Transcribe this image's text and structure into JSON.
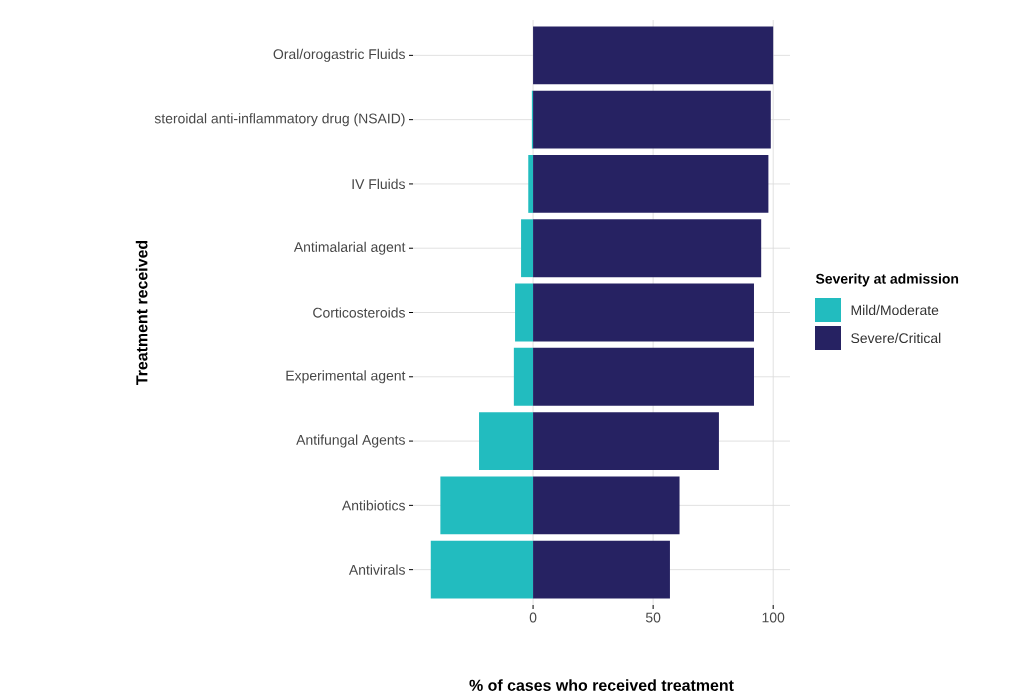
{
  "chart_data": {
    "type": "bar",
    "orientation": "horizontal",
    "stacked": true,
    "xlabel": "% of cases who received treatment",
    "ylabel": "Treatment received",
    "legend_title": "Severity at admission",
    "categories": [
      "Oral/orogastric Fluids",
      "steroidal anti-inflammatory drug (NSAID)",
      "IV Fluids",
      "Antimalarial agent",
      "Corticosteroids",
      "Experimental agent",
      "Antifungal Agents",
      "Antibiotics",
      "Antivirals"
    ],
    "series": [
      {
        "name": "Mild/Moderate",
        "color": "#22bcbf",
        "values": [
          0,
          -0.5,
          -2,
          -5,
          -7.5,
          -8,
          -22.5,
          -38.6,
          -42.6
        ]
      },
      {
        "name": "Severe/Critical",
        "color": "#262262",
        "values": [
          100,
          99,
          98,
          95,
          92,
          92,
          77.4,
          61,
          57
        ]
      }
    ],
    "xlim": [
      -50,
      107
    ],
    "xticks": [
      0,
      50,
      100
    ],
    "grid": true,
    "legend": "right"
  }
}
